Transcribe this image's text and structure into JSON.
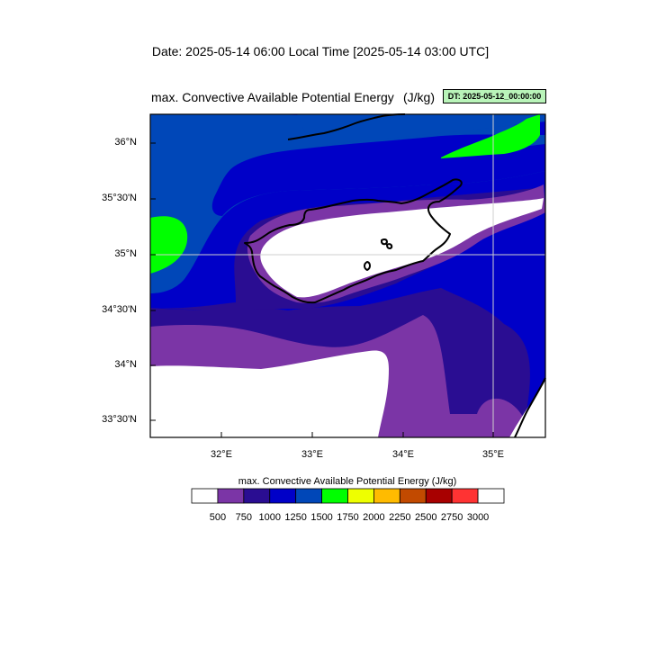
{
  "header": {
    "date_title": "Date: 2025-05-14  06:00 Local Time [2025-05-14  03:00 UTC]",
    "map_title": "max. Convective Available Potential Energy",
    "map_unit": "(J/kg)",
    "dt_badge": "DT: 2025-05-12_00:00:00"
  },
  "axes": {
    "lat_labels": [
      "36°N",
      "35°30'N",
      "35°N",
      "34°30'N",
      "34°N",
      "33°30'N"
    ],
    "lon_labels": [
      "32°E",
      "33°E",
      "34°E",
      "35°E"
    ]
  },
  "colorbar": {
    "title": "max. Convective Available Potential Energy  (J/kg)",
    "levels": [
      "500",
      "750",
      "1000",
      "1250",
      "1500",
      "1750",
      "2000",
      "2250",
      "2500",
      "2750",
      "3000"
    ],
    "colors": [
      "#ffffff",
      "#7b35a6",
      "#2a0d92",
      "#0000c8",
      "#0047b8",
      "#00ff00",
      "#eeff00",
      "#ffbb00",
      "#c24a00",
      "#a80000",
      "#ff3333",
      "#ffffff"
    ]
  },
  "palette": {
    "purple": "#7b35a6",
    "indigo": "#2a0d92",
    "blue": "#0000c8",
    "medblue": "#0047b8",
    "green": "#00ff00"
  }
}
